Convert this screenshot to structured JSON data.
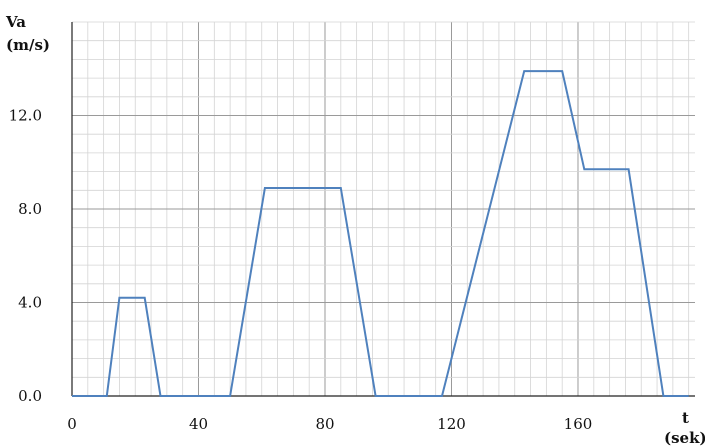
{
  "chart_data": {
    "type": "line",
    "ylabel_line1": "Va",
    "ylabel_line2": "(m/s)",
    "xlabel_line1": "t",
    "xlabel_line2": "(sek)",
    "xlim": [
      0,
      197
    ],
    "ylim": [
      0,
      16
    ],
    "x_ticks": [
      0,
      40,
      80,
      120,
      160
    ],
    "x_tick_labels": [
      "0",
      "40",
      "80",
      "120",
      "160"
    ],
    "y_ticks": [
      0,
      4,
      8,
      12
    ],
    "y_tick_labels": [
      "0.0",
      "4.0",
      "8.0",
      "12.0"
    ],
    "x_minor_step": 5,
    "y_minor_step": 0.8,
    "grid": true,
    "line_color": "#4f81bd",
    "series": [
      {
        "x": [
          0,
          11,
          15,
          23,
          28,
          50,
          61,
          85,
          96,
          117,
          143,
          155,
          162,
          176,
          187,
          195
        ],
        "y": [
          0,
          0,
          4.2,
          4.2,
          0,
          0,
          8.9,
          8.9,
          0,
          0,
          13.9,
          13.9,
          9.7,
          9.7,
          0,
          0
        ]
      }
    ]
  }
}
